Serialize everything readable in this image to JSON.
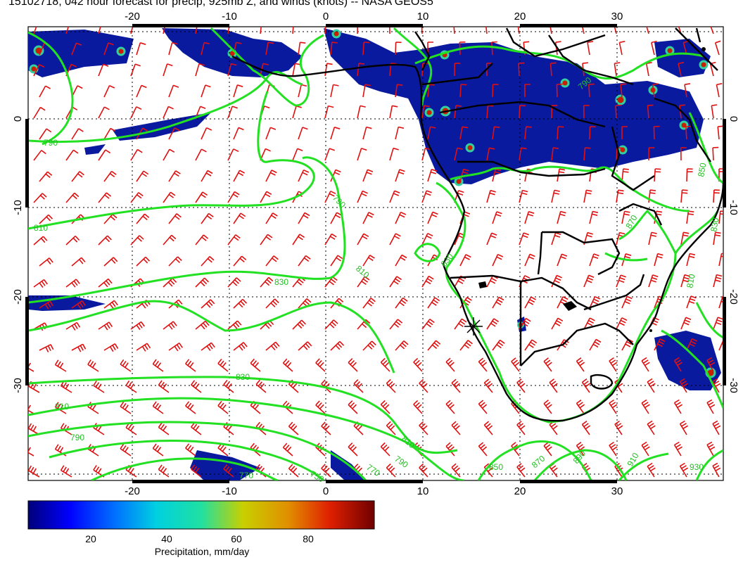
{
  "title": "15102718, 042 hour forecast for precip, 925mb Z, and winds (knots) -- NASA GEOS5",
  "map": {
    "lon_range": [
      -33,
      40
    ],
    "lat_range": [
      -40,
      10
    ],
    "lon_ticks": [
      "-20",
      "-10",
      "0",
      "10",
      "20",
      "30"
    ],
    "lon_tick_values": [
      -20,
      -10,
      0,
      10,
      20,
      30
    ],
    "lat_ticks": [
      "0",
      "-10",
      "-20",
      "-30"
    ],
    "lat_tick_values": [
      0,
      -10,
      -20,
      -30
    ],
    "grid": true,
    "colors": {
      "coast": "#000000",
      "contour": "#22e022",
      "barb": "#e01010",
      "precip_low": "#0a1a9e",
      "precip_high": "#7a0000"
    },
    "contour_labels": [
      "790",
      "810",
      "830",
      "810",
      "790",
      "830",
      "810",
      "790",
      "770",
      "750",
      "770",
      "790",
      "810",
      "830",
      "850",
      "870",
      "890",
      "910",
      "930",
      "870",
      "850",
      "830",
      "810",
      "790"
    ],
    "marker": "crosshair-marker"
  },
  "colorbar": {
    "title": "Precipitation, mm/day",
    "ticks": [
      "20",
      "40",
      "60",
      "80"
    ],
    "tick_values": [
      20,
      40,
      60,
      80
    ],
    "range": [
      0,
      100
    ],
    "stops": [
      "#00007a",
      "#0000ff",
      "#0070ff",
      "#00d0e0",
      "#20e0a0",
      "#c8d000",
      "#e09000",
      "#e02000",
      "#700000"
    ]
  }
}
